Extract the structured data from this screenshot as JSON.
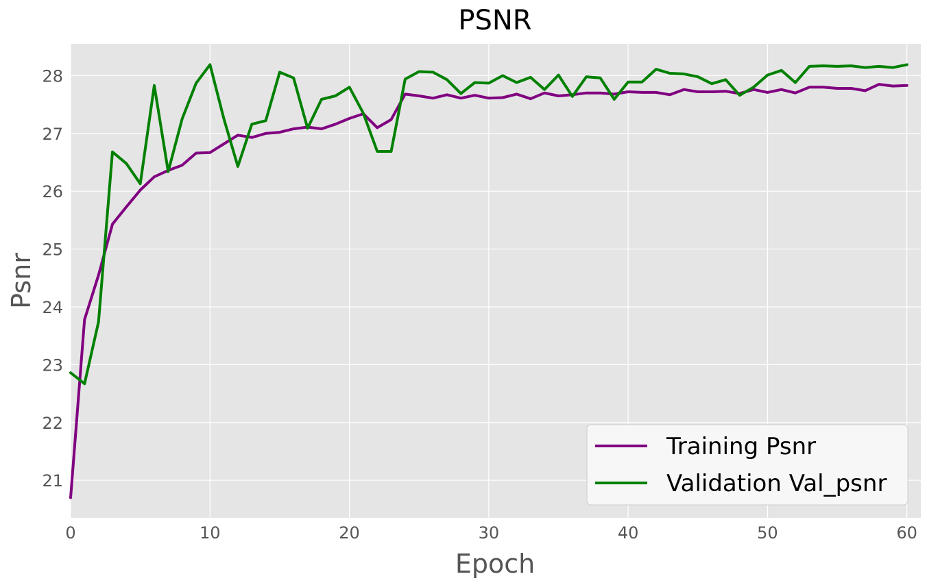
{
  "chart_data": {
    "type": "line",
    "title": "PSNR",
    "xlabel": "Epoch",
    "ylabel": "Psnr",
    "xlim": [
      0,
      61
    ],
    "ylim": [
      20.35,
      28.55
    ],
    "xticks": [
      0,
      10,
      20,
      30,
      40,
      50,
      60
    ],
    "yticks": [
      21,
      22,
      23,
      24,
      25,
      26,
      27,
      28
    ],
    "grid": true,
    "legend_position": "lower right",
    "background": "#e5e5e5",
    "x": [
      0,
      1,
      2,
      3,
      4,
      5,
      6,
      7,
      8,
      9,
      10,
      11,
      12,
      13,
      14,
      15,
      16,
      17,
      18,
      19,
      20,
      21,
      22,
      23,
      24,
      25,
      26,
      27,
      28,
      29,
      30,
      31,
      32,
      33,
      34,
      35,
      36,
      37,
      38,
      39,
      40,
      41,
      42,
      43,
      44,
      45,
      46,
      47,
      48,
      49,
      50,
      51,
      52,
      53,
      54,
      55,
      56,
      57,
      58,
      59,
      60
    ],
    "series": [
      {
        "name": "Training Psnr",
        "color": "#800080",
        "values": [
          20.7,
          23.78,
          24.55,
          25.43,
          25.73,
          26.02,
          26.25,
          26.36,
          26.45,
          26.66,
          26.67,
          26.82,
          26.97,
          26.93,
          27.0,
          27.02,
          27.08,
          27.11,
          27.08,
          27.16,
          27.26,
          27.34,
          27.1,
          27.24,
          27.68,
          27.65,
          27.61,
          27.67,
          27.61,
          27.66,
          27.61,
          27.62,
          27.68,
          27.6,
          27.7,
          27.65,
          27.67,
          27.7,
          27.7,
          27.68,
          27.72,
          27.71,
          27.71,
          27.67,
          27.76,
          27.72,
          27.72,
          27.73,
          27.69,
          27.76,
          27.71,
          27.76,
          27.7,
          27.8,
          27.8,
          27.78,
          27.78,
          27.74,
          27.85,
          27.82,
          27.83
        ]
      },
      {
        "name": "Validation Val_psnr",
        "color": "#008000",
        "values": [
          22.86,
          22.67,
          23.74,
          26.68,
          26.48,
          26.13,
          27.83,
          26.34,
          27.25,
          27.87,
          28.19,
          27.25,
          26.43,
          27.16,
          27.22,
          28.06,
          27.96,
          27.09,
          27.59,
          27.65,
          27.8,
          27.35,
          26.69,
          26.69,
          27.94,
          28.07,
          28.06,
          27.93,
          27.69,
          27.88,
          27.87,
          28.0,
          27.88,
          27.97,
          27.76,
          28.01,
          27.64,
          27.98,
          27.96,
          27.59,
          27.89,
          27.89,
          28.11,
          28.04,
          28.03,
          27.98,
          27.86,
          27.93,
          27.66,
          27.8,
          28.01,
          28.09,
          27.88,
          28.16,
          28.17,
          28.16,
          28.17,
          28.14,
          28.16,
          28.14,
          28.19
        ]
      }
    ]
  }
}
